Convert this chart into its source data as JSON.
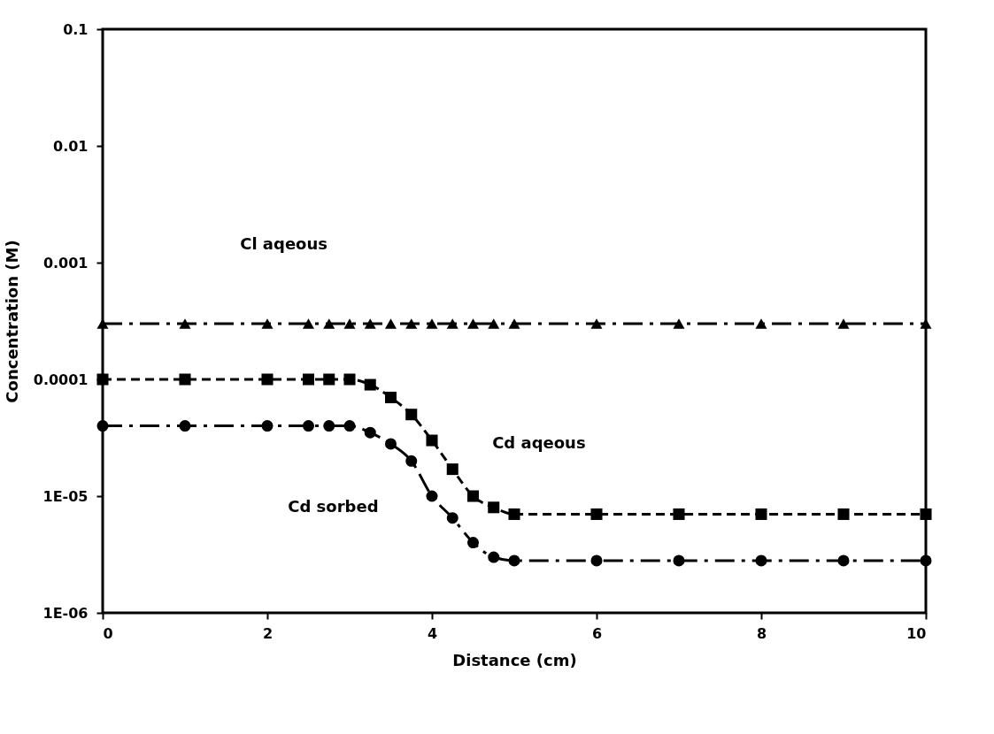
{
  "chart_data": {
    "type": "line",
    "xlabel": "Distance (cm)",
    "ylabel": "Concentration (M)",
    "log": "y",
    "x": [
      0,
      1,
      2,
      2.5,
      2.75,
      3,
      3.25,
      3.5,
      3.75,
      4,
      4.25,
      4.5,
      4.75,
      5,
      6,
      7,
      8,
      9,
      10
    ],
    "series": [
      {
        "color": "#000000",
        "marker": "triangle",
        "line_style": "dashdot",
        "values": [
          0.0003,
          0.0003,
          0.0003,
          0.0003,
          0.0003,
          0.0003,
          0.0003,
          0.0003,
          0.0003,
          0.0003,
          0.0003,
          0.0003,
          0.0003,
          0.0003,
          0.0003,
          0.0003,
          0.0003,
          0.0003,
          0.0003
        ]
      },
      {
        "color": "#000000",
        "marker": "square",
        "line_style": "dashed",
        "values": [
          0.0001,
          0.0001,
          0.0001,
          0.0001,
          0.0001,
          0.0001,
          9e-05,
          7e-05,
          5e-05,
          3e-05,
          1.7e-05,
          1e-05,
          8e-06,
          7e-06,
          7e-06,
          7e-06,
          7e-06,
          7e-06,
          7e-06
        ]
      },
      {
        "color": "#000000",
        "marker": "circle",
        "line_style": "dashdot",
        "values": [
          4e-05,
          4e-05,
          4e-05,
          4e-05,
          4e-05,
          4e-05,
          3.5e-05,
          2.8e-05,
          2e-05,
          1e-05,
          6.5e-06,
          4e-06,
          3e-06,
          2.8e-06,
          2.8e-06,
          2.8e-06,
          2.8e-06,
          2.8e-06,
          2.8e-06
        ]
      }
    ],
    "xlim": [
      0,
      10
    ],
    "xticks": [
      0,
      2,
      4,
      6,
      8,
      10
    ],
    "ylim": [
      1e-06,
      0.1
    ],
    "yticks": [
      0.1,
      0.01,
      0.001,
      0.0001,
      {
        "value": 1e-05,
        "label": "1E-05"
      },
      {
        "value": 1e-06,
        "label": "1E-06"
      }
    ],
    "grid": false,
    "annotations": [
      "Cl aqeous",
      "Cd aqeous",
      "Cd sorbed"
    ]
  }
}
